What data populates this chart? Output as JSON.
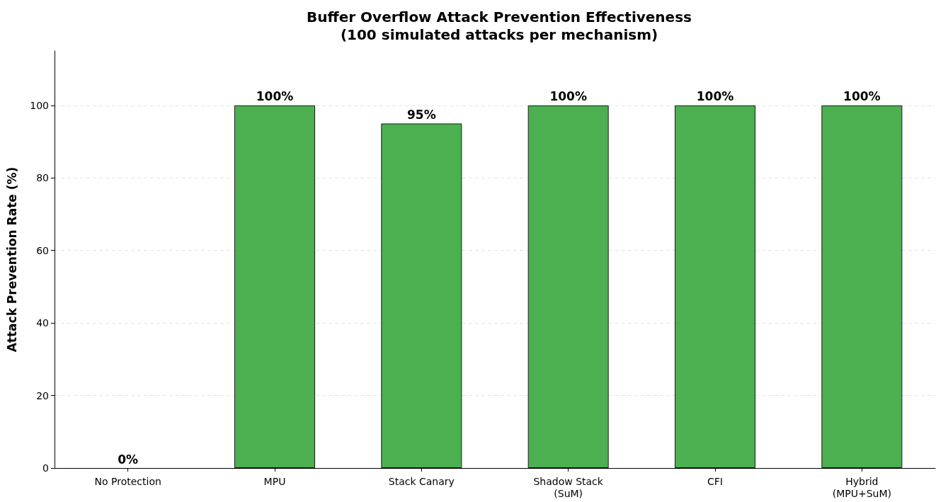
{
  "chart_data": {
    "type": "bar",
    "title": "Buffer Overflow Attack Prevention Effectiveness\n(100 simulated attacks per mechanism)",
    "ylabel": "Attack Prevention Rate (%)",
    "categories": [
      "No Protection",
      "MPU",
      "Stack Canary",
      "Shadow Stack\n(SuM)",
      "CFI",
      "Hybrid\n(MPU+SuM)"
    ],
    "values": [
      0,
      100,
      95,
      100,
      100,
      100
    ],
    "value_labels": [
      "0%",
      "100%",
      "95%",
      "100%",
      "100%",
      "100%"
    ],
    "color": "#4caf50",
    "ylim": [
      0,
      115
    ],
    "yticks": [
      0,
      20,
      40,
      60,
      80,
      100
    ],
    "grid": "y"
  }
}
